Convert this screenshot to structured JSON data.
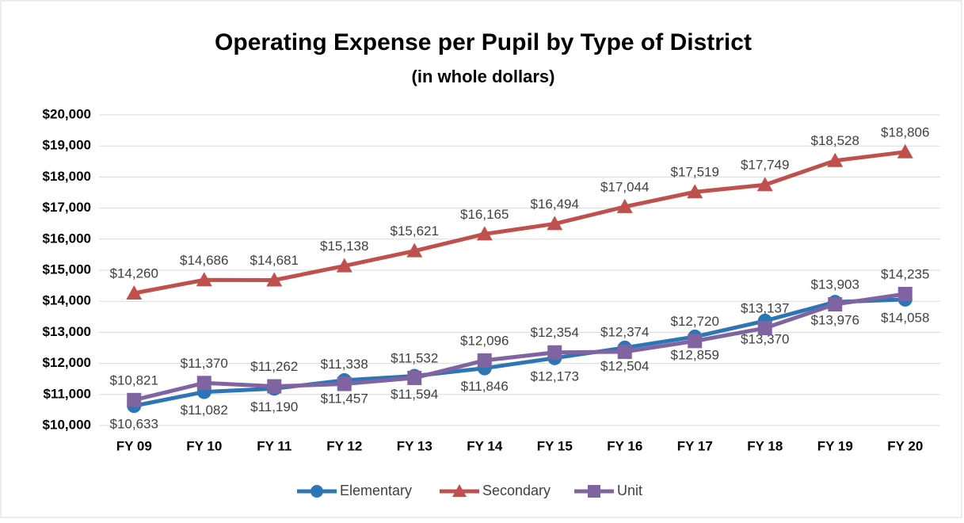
{
  "chart_data": {
    "type": "line",
    "title": "Operating Expense per Pupil by Type of District",
    "subtitle": "(in whole dollars)",
    "categories": [
      "FY 09",
      "FY 10",
      "FY 11",
      "FY 12",
      "FY 13",
      "FY 14",
      "FY 15",
      "FY 16",
      "FY 17",
      "FY 18",
      "FY 19",
      "FY 20"
    ],
    "series": [
      {
        "name": "Elementary",
        "color": "#2e75b6",
        "marker": "circle",
        "values": [
          10633,
          11082,
          11190,
          11457,
          11594,
          11846,
          12173,
          12504,
          12859,
          13370,
          13976,
          14058
        ],
        "value_labels": [
          "$10,633",
          "$11,082",
          "$11,190",
          "$11,457",
          "$11,594",
          "$11,846",
          "$12,173",
          "$12,504",
          "$12,859",
          "$13,370",
          "$13,976",
          "$14,058"
        ]
      },
      {
        "name": "Secondary",
        "color": "#c0504d",
        "marker": "triangle",
        "values": [
          14260,
          14686,
          14681,
          15138,
          15621,
          16165,
          16494,
          17044,
          17519,
          17749,
          18528,
          18806
        ],
        "value_labels": [
          "$14,260",
          "$14,686",
          "$14,681",
          "$15,138",
          "$15,621",
          "$16,165",
          "$16,494",
          "$17,044",
          "$17,519",
          "$17,749",
          "$18,528",
          "$18,806"
        ]
      },
      {
        "name": "Unit",
        "color": "#8064a2",
        "marker": "square",
        "values": [
          10821,
          11370,
          11262,
          11338,
          11532,
          12096,
          12354,
          12374,
          12720,
          13137,
          13903,
          14235
        ],
        "value_labels": [
          "$10,821",
          "$11,370",
          "$11,262",
          "$11,338",
          "$11,532",
          "$12,096",
          "$12,354",
          "$12,374",
          "$12,720",
          "$13,137",
          "$13,903",
          "$14,235"
        ]
      }
    ],
    "ylim": [
      10000,
      20000
    ],
    "yticks": [
      {
        "value": 10000,
        "label": "$10,000"
      },
      {
        "value": 11000,
        "label": "$11,000"
      },
      {
        "value": 12000,
        "label": "$12,000"
      },
      {
        "value": 13000,
        "label": "$13,000"
      },
      {
        "value": 14000,
        "label": "$14,000"
      },
      {
        "value": 15000,
        "label": "$15,000"
      },
      {
        "value": 16000,
        "label": "$16,000"
      },
      {
        "value": 17000,
        "label": "$17,000"
      },
      {
        "value": 18000,
        "label": "$18,000"
      },
      {
        "value": 19000,
        "label": "$19,000"
      },
      {
        "value": 20000,
        "label": "$20,000"
      }
    ],
    "grid": true,
    "legend": "bottom"
  }
}
